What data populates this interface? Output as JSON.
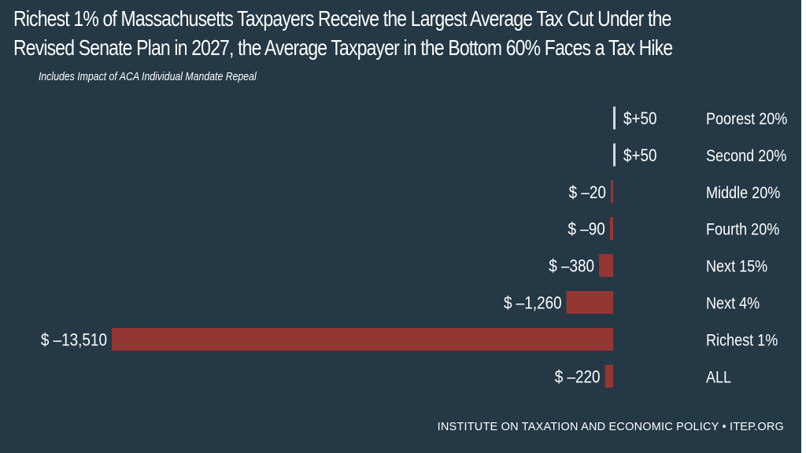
{
  "title_line1": "Richest 1% of Massachusetts Taxpayers Receive the Largest Average Tax Cut Under the",
  "title_line2": "Revised Senate Plan in 2027, the Average Taxpayer in the Bottom 60% Faces a Tax Hike",
  "subtitle": "Includes Impact of ACA Individual Mandate Repeal",
  "source": "INSTITUTE ON TAXATION AND ECONOMIC POLICY • ITEP.ORG",
  "colors": {
    "background": "#243845",
    "negative_bar": "#943634",
    "positive_bar": "#d9d9d9",
    "text": "#ffffff"
  },
  "chart_data": {
    "type": "bar",
    "orientation": "horizontal",
    "title": "Richest 1% of Massachusetts Taxpayers Receive the Largest Average Tax Cut Under the Revised Senate Plan in 2027, the Average Taxpayer in the Bottom 60% Faces a Tax Hike",
    "subtitle": "Includes Impact of ACA Individual Mandate Repeal",
    "categories": [
      "Poorest 20%",
      "Second 20%",
      "Middle 20%",
      "Fourth 20%",
      "Next 15%",
      "Next 4%",
      "Richest 1%",
      "ALL"
    ],
    "values": [
      50,
      50,
      -20,
      -90,
      -380,
      -1260,
      -13510,
      -220
    ],
    "data_labels": [
      "$+50",
      "$+50",
      "$ –20",
      "$ –90",
      "$ –380",
      "$ –1,260",
      "$ –13,510",
      "$ –220"
    ],
    "xlim": [
      -13510,
      50
    ],
    "grid": false,
    "legend": "none",
    "xlabel": "",
    "ylabel": ""
  }
}
